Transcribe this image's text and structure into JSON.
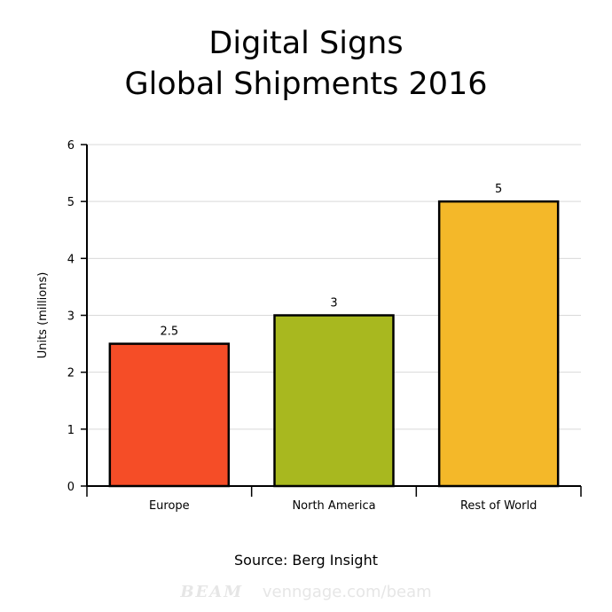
{
  "chart_data": {
    "type": "bar",
    "title": [
      "Digital Signs",
      "Global Shipments 2016"
    ],
    "ylabel": "Units (millions)",
    "xlabel": "",
    "categories": [
      "Europe",
      "North America",
      "Rest of World"
    ],
    "values": [
      2.5,
      3,
      5
    ],
    "data_labels": [
      "2.5",
      "3",
      "5"
    ],
    "colors": [
      "#f54d27",
      "#a8b81f",
      "#f4b829"
    ],
    "yticks": [
      0,
      1,
      2,
      3,
      4,
      5,
      6
    ],
    "ylim": [
      0,
      6
    ],
    "grid": true,
    "legend": "none"
  },
  "source": "Source: Berg Insight",
  "watermark": {
    "brand": "BEAM",
    "url": "venngage.com/beam"
  }
}
